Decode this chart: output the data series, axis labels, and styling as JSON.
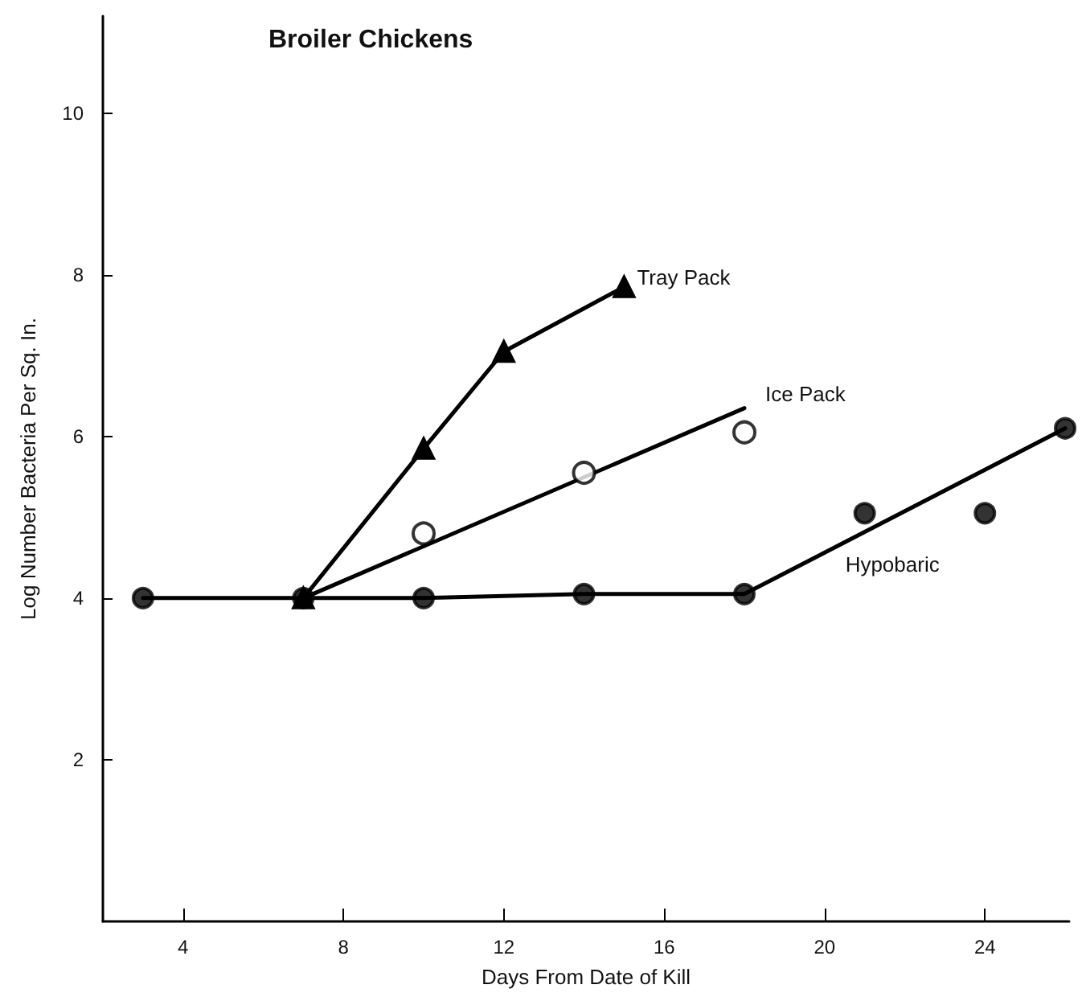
{
  "chart_data": {
    "type": "line",
    "title": "Broiler Chickens",
    "xlabel": "Days From Date of Kill",
    "ylabel": "Log Number Bacteria Per Sq. In.",
    "xlim": [
      2,
      26.1
    ],
    "xticks": [
      4,
      8,
      12,
      16,
      20,
      24
    ],
    "ylim": [
      0,
      11.2
    ],
    "yticks": [
      2,
      4,
      6,
      8,
      10
    ],
    "grid": false,
    "legend": false,
    "line_style": "solid",
    "series": [
      {
        "name": "Tray Pack",
        "type": "line",
        "marker": "triangle",
        "color": "#000000",
        "x": [
          7,
          10,
          12,
          15
        ],
        "values": [
          4.0,
          5.85,
          7.05,
          7.85
        ]
      },
      {
        "name": "Ice Pack",
        "type": "scatter",
        "marker": "open_circle",
        "color": "#000000",
        "x": [
          10,
          14,
          18
        ],
        "values": [
          4.8,
          5.55,
          6.05
        ]
      },
      {
        "type": "line",
        "marker": "none",
        "color": "#000000",
        "x": [
          7,
          18
        ],
        "values": [
          4.0,
          6.35
        ]
      },
      {
        "name": "Hypobaric",
        "type": "scatter",
        "marker": "circle",
        "color": "#000000",
        "x": [
          3,
          7,
          10,
          14,
          18,
          21,
          24,
          26
        ],
        "values": [
          4.0,
          4.0,
          4.0,
          4.05,
          4.05,
          5.05,
          5.05,
          6.1
        ]
      },
      {
        "type": "line",
        "marker": "none",
        "color": "#000000",
        "x": [
          3,
          7,
          10,
          14,
          18,
          26
        ],
        "values": [
          4.0,
          4.0,
          4.0,
          4.05,
          4.05,
          6.1
        ]
      }
    ]
  }
}
